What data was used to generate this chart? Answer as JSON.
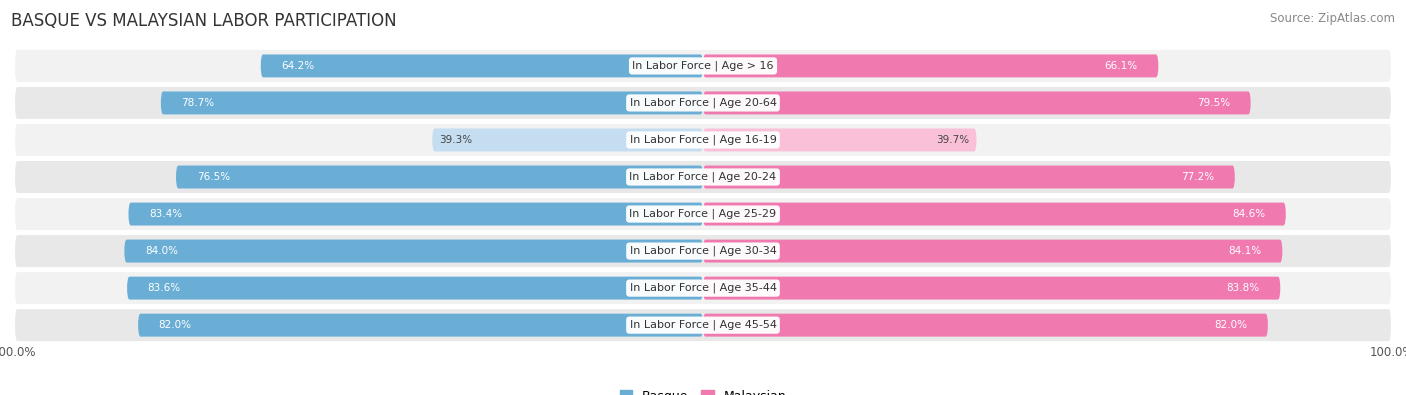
{
  "title": "BASQUE VS MALAYSIAN LABOR PARTICIPATION",
  "source": "Source: ZipAtlas.com",
  "categories": [
    "In Labor Force | Age > 16",
    "In Labor Force | Age 20-64",
    "In Labor Force | Age 16-19",
    "In Labor Force | Age 20-24",
    "In Labor Force | Age 25-29",
    "In Labor Force | Age 30-34",
    "In Labor Force | Age 35-44",
    "In Labor Force | Age 45-54"
  ],
  "basque_values": [
    64.2,
    78.7,
    39.3,
    76.5,
    83.4,
    84.0,
    83.6,
    82.0
  ],
  "malaysian_values": [
    66.1,
    79.5,
    39.7,
    77.2,
    84.6,
    84.1,
    83.8,
    82.0
  ],
  "basque_color_dark": "#6aaed6",
  "basque_color_light": "#c5ddf0",
  "malaysian_color_dark": "#f07ab0",
  "malaysian_color_light": "#f9c0d8",
  "row_bg_color_odd": "#f2f2f2",
  "row_bg_color_even": "#e8e8e8",
  "max_value": 100.0,
  "bar_height": 0.62,
  "label_fontsize": 8.0,
  "title_fontsize": 12,
  "source_fontsize": 8.5,
  "legend_fontsize": 9,
  "value_fontsize": 7.5
}
